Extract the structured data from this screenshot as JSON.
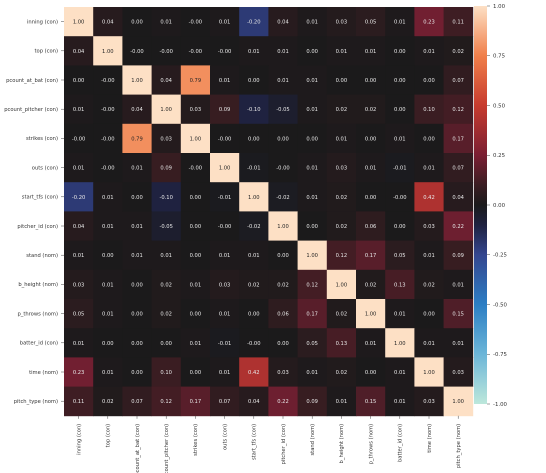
{
  "chart_data": {
    "type": "heatmap",
    "title": "",
    "xlabel": "",
    "ylabel": "",
    "labels": [
      "inning (con)",
      "top (con)",
      "pcount_at_bat (con)",
      "pcount_pitcher (con)",
      "strikes (con)",
      "outs (con)",
      "start_tfs (con)",
      "pitcher_id (con)",
      "stand (nom)",
      "b_height (nom)",
      "p_throws (nom)",
      "batter_id (con)",
      "time (nom)",
      "pitch_type (nom)"
    ],
    "values": [
      [
        1.0,
        0.04,
        0.0,
        0.01,
        -0.0,
        0.01,
        -0.2,
        0.04,
        0.01,
        0.03,
        0.05,
        0.01,
        0.23,
        0.11
      ],
      [
        0.04,
        1.0,
        -0.0,
        -0.0,
        -0.0,
        -0.0,
        0.01,
        0.01,
        0.0,
        0.01,
        0.01,
        0.0,
        0.01,
        0.02
      ],
      [
        0.0,
        -0.0,
        1.0,
        0.04,
        0.79,
        0.01,
        0.0,
        0.01,
        0.01,
        0.0,
        0.0,
        0.0,
        0.0,
        0.07
      ],
      [
        0.01,
        -0.0,
        0.04,
        1.0,
        0.03,
        0.09,
        -0.1,
        -0.05,
        0.01,
        0.02,
        0.02,
        0.0,
        0.1,
        0.12
      ],
      [
        -0.0,
        -0.0,
        0.79,
        0.03,
        1.0,
        -0.0,
        0.0,
        0.0,
        0.0,
        0.01,
        0.0,
        0.01,
        0.0,
        0.17
      ],
      [
        0.01,
        -0.0,
        0.01,
        0.09,
        -0.0,
        1.0,
        -0.01,
        -0.0,
        0.01,
        0.03,
        0.01,
        -0.01,
        0.01,
        0.07
      ],
      [
        -0.2,
        0.01,
        0.0,
        -0.1,
        0.0,
        -0.01,
        1.0,
        -0.02,
        0.01,
        0.02,
        0.0,
        -0.0,
        0.42,
        0.04
      ],
      [
        0.04,
        0.01,
        0.01,
        -0.05,
        0.0,
        -0.0,
        -0.02,
        1.0,
        0.0,
        0.02,
        0.06,
        0.0,
        0.03,
        0.22
      ],
      [
        0.01,
        0.0,
        0.01,
        0.01,
        0.0,
        0.01,
        0.01,
        0.0,
        1.0,
        0.12,
        0.17,
        0.05,
        0.01,
        0.09
      ],
      [
        0.03,
        0.01,
        0.0,
        0.02,
        0.01,
        0.03,
        0.02,
        0.02,
        0.12,
        1.0,
        0.02,
        0.13,
        0.02,
        0.01
      ],
      [
        0.05,
        0.01,
        0.0,
        0.02,
        0.0,
        0.01,
        0.0,
        0.06,
        0.17,
        0.02,
        1.0,
        0.01,
        0.0,
        0.15
      ],
      [
        0.01,
        0.0,
        0.0,
        0.0,
        0.01,
        -0.01,
        -0.0,
        0.0,
        0.05,
        0.13,
        0.01,
        1.0,
        0.01,
        0.01
      ],
      [
        0.23,
        0.01,
        0.0,
        0.1,
        0.0,
        0.01,
        0.42,
        0.03,
        0.01,
        0.02,
        0.0,
        0.01,
        1.0,
        0.03
      ],
      [
        0.11,
        0.02,
        0.07,
        0.12,
        0.17,
        0.07,
        0.04,
        0.22,
        0.09,
        0.01,
        0.15,
        0.01,
        0.03,
        1.0
      ]
    ],
    "value_format": "2dp",
    "colorbar": {
      "range": [
        -1.0,
        1.0
      ],
      "ticks": [
        "1.00",
        "0.75",
        "0.50",
        "0.25",
        "0.00",
        "-0.25",
        "-0.50",
        "-0.75",
        "-1.00"
      ],
      "tick_values": [
        1.0,
        0.75,
        0.5,
        0.25,
        0.0,
        -0.25,
        -0.5,
        -0.75,
        -1.0
      ],
      "colormap": "icefire",
      "stops": [
        {
          "v": -1.0,
          "color": "#bde7db"
        },
        {
          "v": -0.75,
          "color": "#6cb6d8"
        },
        {
          "v": -0.5,
          "color": "#2c7ec4"
        },
        {
          "v": -0.25,
          "color": "#34468f"
        },
        {
          "v": -0.1,
          "color": "#1f2240"
        },
        {
          "v": 0.0,
          "color": "#1b1a1b"
        },
        {
          "v": 0.1,
          "color": "#3a1d22"
        },
        {
          "v": 0.25,
          "color": "#7a1f33"
        },
        {
          "v": 0.5,
          "color": "#c73b2e"
        },
        {
          "v": 0.75,
          "color": "#f07f4a"
        },
        {
          "v": 1.0,
          "color": "#fde0c5"
        }
      ]
    },
    "grid": false,
    "legend": "colorbar-right"
  }
}
